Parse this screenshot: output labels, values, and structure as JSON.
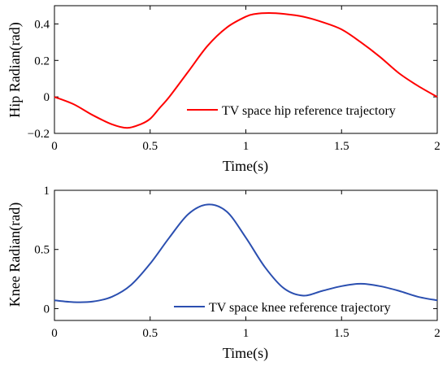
{
  "chart_data": [
    {
      "type": "line",
      "xlabel": "Time(s)",
      "ylabel": "Hip Radian(rad)",
      "xlim": [
        0,
        2
      ],
      "ylim": [
        -0.2,
        0.5
      ],
      "xticks": [
        0,
        0.5,
        1,
        1.5,
        2
      ],
      "xtick_labels": [
        "0",
        "0.5",
        "1",
        "1.5",
        "2"
      ],
      "yticks": [
        -0.2,
        0,
        0.2,
        0.4
      ],
      "ytick_labels": [
        "−0.2",
        "0",
        "0.2",
        "0.4"
      ],
      "grid": false,
      "legend_position": "lower-right",
      "series": [
        {
          "name": "TV space hip reference trajectory",
          "color": "#ff0000",
          "x": [
            0,
            0.1,
            0.2,
            0.3,
            0.38,
            0.45,
            0.5,
            0.55,
            0.6,
            0.7,
            0.8,
            0.9,
            1.0,
            1.05,
            1.12,
            1.2,
            1.3,
            1.4,
            1.5,
            1.6,
            1.7,
            1.8,
            1.9,
            2.0
          ],
          "y": [
            0.0,
            -0.04,
            -0.1,
            -0.15,
            -0.17,
            -0.15,
            -0.12,
            -0.06,
            0.0,
            0.14,
            0.28,
            0.38,
            0.44,
            0.455,
            0.46,
            0.455,
            0.44,
            0.41,
            0.37,
            0.3,
            0.22,
            0.13,
            0.06,
            0.0
          ]
        }
      ]
    },
    {
      "type": "line",
      "xlabel": "Time(s)",
      "ylabel": "Knee Radian(rad)",
      "xlim": [
        0,
        2
      ],
      "ylim": [
        -0.1,
        1.0
      ],
      "xticks": [
        0,
        0.5,
        1,
        1.5,
        2
      ],
      "xtick_labels": [
        "0",
        "0.5",
        "1",
        "1.5",
        "2"
      ],
      "yticks": [
        0,
        0.5,
        1
      ],
      "ytick_labels": [
        "0",
        "0.5",
        "1"
      ],
      "grid": false,
      "legend_position": "lower-right",
      "series": [
        {
          "name": "TV space knee reference trajectory",
          "color": "#2b4fb0",
          "x": [
            0,
            0.1,
            0.2,
            0.3,
            0.4,
            0.5,
            0.6,
            0.7,
            0.8,
            0.9,
            1.0,
            1.1,
            1.2,
            1.3,
            1.4,
            1.5,
            1.6,
            1.7,
            1.8,
            1.9,
            2.0
          ],
          "y": [
            0.07,
            0.055,
            0.06,
            0.1,
            0.2,
            0.38,
            0.6,
            0.8,
            0.88,
            0.82,
            0.6,
            0.35,
            0.17,
            0.11,
            0.15,
            0.19,
            0.21,
            0.19,
            0.15,
            0.1,
            0.07
          ]
        }
      ]
    }
  ]
}
